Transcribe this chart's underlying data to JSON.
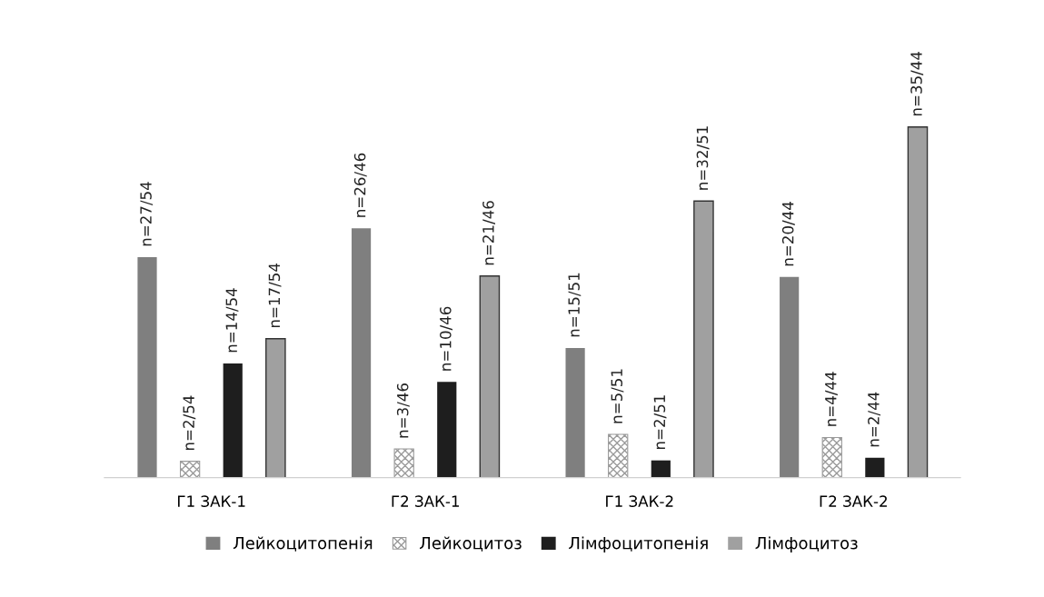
{
  "chart_data": {
    "type": "bar",
    "tick_labels": "x",
    "categories": [
      "Г1 ЗАК-1",
      "Г2 ЗАК-1",
      "Г1 ЗАК-2",
      "Г2 ЗАК-2"
    ],
    "series": [
      {
        "name": "Лейкоцитопенія",
        "color": "#7f7f7f",
        "values": [
          50.0,
          56.5,
          29.4,
          45.5
        ],
        "value_labels": [
          "n=27/54",
          "n=26/46",
          "n=15/51",
          "n=20/44"
        ]
      },
      {
        "name": "Лейкоцитоз",
        "color": "#9a9a9a",
        "values": [
          3.7,
          6.5,
          9.8,
          9.1
        ],
        "value_labels": [
          "n=2/54",
          "n=3/46",
          "n=5/51",
          "n=4/44"
        ]
      },
      {
        "name": "Лімфоцитопенія",
        "color": "#1e1e1e",
        "values": [
          25.9,
          21.7,
          3.9,
          4.5
        ],
        "value_labels": [
          "n=14/54",
          "n=10/46",
          "n=2/51",
          "n=2/44"
        ]
      },
      {
        "name": "Лімфоцитоз",
        "color": "#a0a0a0",
        "values": [
          31.5,
          45.7,
          62.7,
          79.5
        ],
        "value_labels": [
          "n=17/54",
          "n=21/46",
          "n=32/51",
          "n=35/44"
        ]
      }
    ],
    "legend": "bottom",
    "grid": false
  }
}
